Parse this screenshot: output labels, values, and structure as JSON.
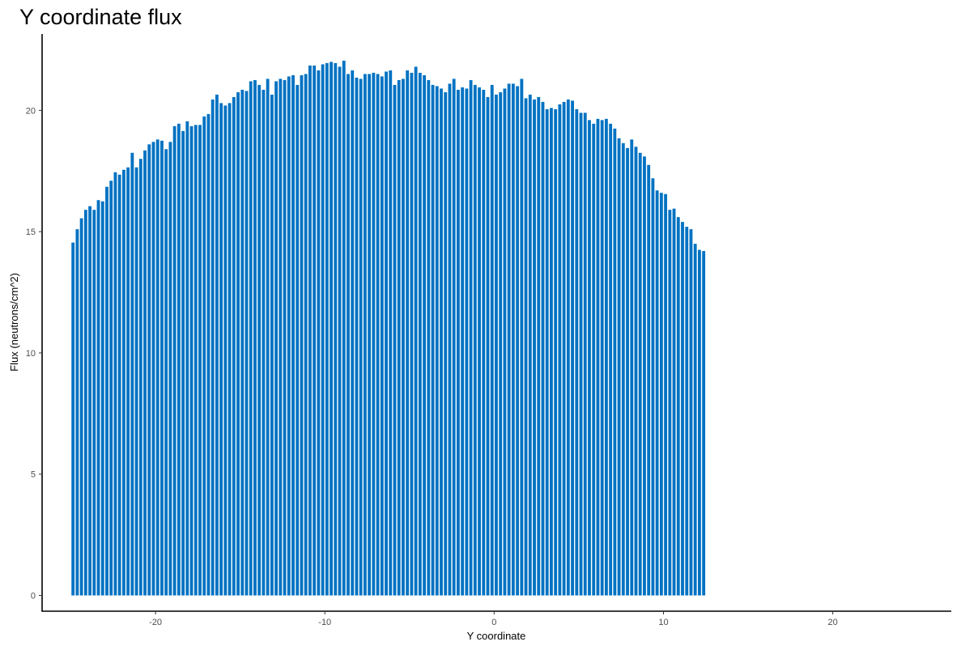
{
  "chart_data": {
    "type": "bar",
    "title": "Y coordinate flux",
    "xlabel": "Y coordinate",
    "ylabel": "Flux (neutrons/cm^2)",
    "bar_color": "#0072C2",
    "x_ticks": [
      -20,
      -10,
      0,
      10,
      20
    ],
    "y_ticks": [
      0,
      5,
      10,
      15,
      20
    ],
    "xlim": [
      -26.7,
      27.0
    ],
    "ylim": [
      -0.65,
      23.15
    ],
    "grid": false,
    "legend": "none",
    "bar_width": 0.25,
    "x_start": -24.875,
    "x_step": 0.25,
    "values": [
      14.55,
      15.1,
      15.55,
      15.9,
      16.05,
      15.9,
      16.3,
      16.25,
      16.85,
      17.1,
      17.45,
      17.35,
      17.55,
      17.65,
      18.25,
      17.65,
      18,
      18.35,
      18.6,
      18.7,
      18.8,
      18.75,
      18.4,
      18.7,
      19.35,
      19.45,
      19.15,
      19.55,
      19.35,
      19.4,
      19.4,
      19.75,
      19.85,
      20.45,
      20.65,
      20.3,
      20.2,
      20.3,
      20.55,
      20.75,
      20.85,
      20.8,
      21.2,
      21.25,
      21.05,
      20.85,
      21.3,
      20.65,
      21.2,
      21.3,
      21.25,
      21.4,
      21.45,
      21.05,
      21.45,
      21.5,
      21.85,
      21.85,
      21.65,
      21.9,
      21.95,
      22,
      21.95,
      21.8,
      22.05,
      21.5,
      21.65,
      21.35,
      21.3,
      21.5,
      21.5,
      21.55,
      21.5,
      21.4,
      21.6,
      21.65,
      21.05,
      21.25,
      21.3,
      21.65,
      21.55,
      21.8,
      21.55,
      21.45,
      21.25,
      21.05,
      21.0,
      20.9,
      20.75,
      21.1,
      21.3,
      20.85,
      20.95,
      20.9,
      21.25,
      21.05,
      20.95,
      20.85,
      20.55,
      21.05,
      20.65,
      20.75,
      20.9,
      21.1,
      21.1,
      21.0,
      21.3,
      20.5,
      20.65,
      20.45,
      20.55,
      20.35,
      20.05,
      20.1,
      20.05,
      20.25,
      20.35,
      20.45,
      20.4,
      20.05,
      19.9,
      19.9,
      19.6,
      19.45,
      19.65,
      19.6,
      19.65,
      19.45,
      19.25,
      18.85,
      18.65,
      18.45,
      18.8,
      18.5,
      18.25,
      18.1,
      17.75,
      17.2,
      16.7,
      16.6,
      16.55,
      15.9,
      15.95,
      15.6,
      15.4,
      15.2,
      15.1,
      14.5,
      14.25,
      14.2
    ]
  }
}
